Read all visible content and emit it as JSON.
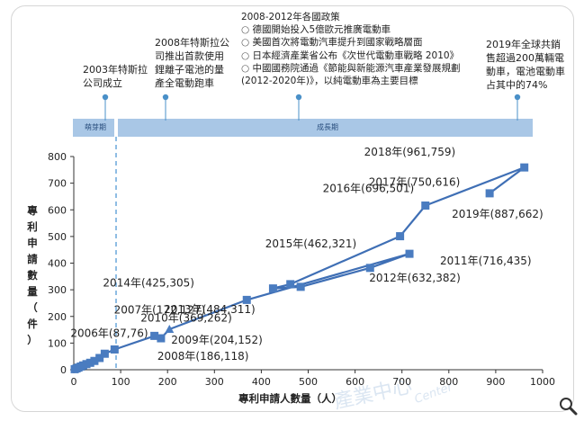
{
  "timeline": {
    "phase_early": "萌芽期",
    "phase_growth": "成長期",
    "annotations": [
      {
        "text": "2003年特斯拉\n公司成立"
      },
      {
        "text": "2008年特斯拉公\n司推出首款使用\n鋰離子電池的量\n產全電動跑車"
      },
      {
        "title": "2008-2012年各國政策",
        "items": [
          "德國開始投入5億歐元推廣電動車",
          "美國首次將電動汽車提升到國家戰略層面",
          "日本經濟產業省公布《次世代電動車戰略 2010》",
          "中國國務院通過《節能與新能源汽車產業發展規劃"
        ],
        "tail": "(2012-2020年)》，以純電動車為主要目標"
      },
      {
        "text": "2019年全球共銷\n售超過200萬輛電\n動車，電池電動車\n占其中的74%"
      }
    ]
  },
  "chart_data": {
    "type": "line",
    "xlabel": "專利申請人數量（人）",
    "ylabel": "專利申請數量（件）",
    "xlim": [
      0,
      1000
    ],
    "ylim": [
      0,
      800
    ],
    "xticks": [
      0,
      100,
      200,
      300,
      400,
      500,
      600,
      700,
      800,
      900,
      1000
    ],
    "yticks": [
      0,
      100,
      200,
      300,
      400,
      500,
      600,
      700,
      800
    ],
    "series": [
      {
        "points": [
          {
            "x": 2,
            "y": 2
          },
          {
            "x": 6,
            "y": 5
          },
          {
            "x": 10,
            "y": 8
          },
          {
            "x": 15,
            "y": 12
          },
          {
            "x": 20,
            "y": 16
          },
          {
            "x": 27,
            "y": 21
          },
          {
            "x": 35,
            "y": 26
          },
          {
            "x": 44,
            "y": 33
          },
          {
            "x": 55,
            "y": 44
          },
          {
            "x": 66,
            "y": 60
          },
          {
            "x": 87,
            "y": 76,
            "label": "2006年(87,76)"
          },
          {
            "x": 172,
            "y": 127,
            "label": "2007年(172,127)"
          },
          {
            "x": 186,
            "y": 118,
            "label": "2008年(186,118)"
          },
          {
            "x": 204,
            "y": 152,
            "label": "2009年(204,152)"
          },
          {
            "x": 369,
            "y": 262,
            "label": "2010年(369,262)"
          },
          {
            "x": 716,
            "y": 435,
            "label": "2011年(716,435)"
          },
          {
            "x": 632,
            "y": 382,
            "label": "2012年(632,382)"
          },
          {
            "x": 484,
            "y": 311,
            "label": "2013年(484,311)"
          },
          {
            "x": 425,
            "y": 305,
            "label": "2014年(425,305)"
          },
          {
            "x": 462,
            "y": 321,
            "label": "2015年(462,321)"
          },
          {
            "x": 696,
            "y": 501,
            "label": "2016年(696,501)"
          },
          {
            "x": 750,
            "y": 616,
            "label": "2017年(750,616)"
          },
          {
            "x": 961,
            "y": 759,
            "label": "2018年(961,759)"
          },
          {
            "x": 887,
            "y": 662,
            "label": "2019年(887,662)"
          }
        ]
      }
    ]
  },
  "watermark": {
    "text": "產業中心",
    "sub": "Center"
  }
}
